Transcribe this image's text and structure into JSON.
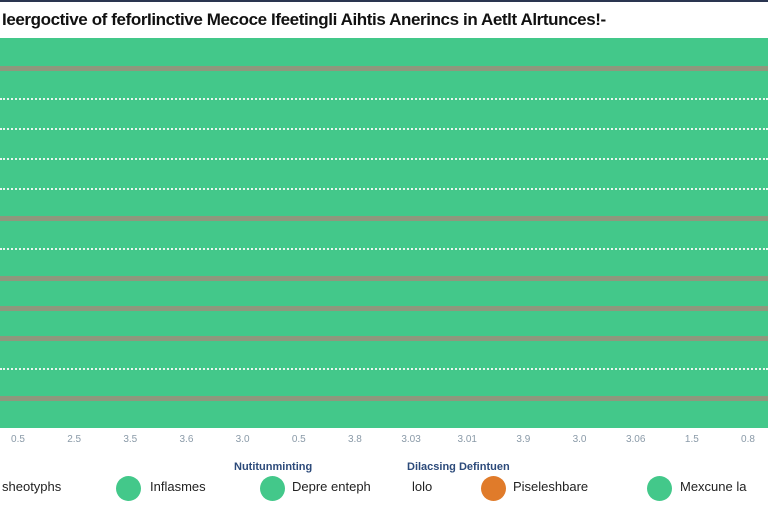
{
  "chart_data": {
    "type": "area",
    "title": "Ieergoctive of feforIinctive Mecoce Ifeetingli Aihtis Anerincs in Aetlt Alrtunces!-",
    "series_color": "#43c88a",
    "gridlines": {
      "solid": [
        1,
        6,
        8,
        9,
        10,
        12
      ],
      "dotted": [
        2,
        3,
        4,
        5,
        7,
        11
      ],
      "solid_color": "#9c8f7a",
      "dotted_color": "#e8f5ee"
    },
    "x_tick_labels": [
      "0.5",
      "2.5",
      "3.5",
      "3.6",
      "3.0",
      "0.5",
      "3.8",
      "3.03",
      "3.01",
      "3.9",
      "3.0",
      "3.06",
      "1.5",
      "0.8"
    ],
    "legend": {
      "groups": [
        "Nutitunminting",
        "Dilacsing Defintuen"
      ],
      "items": [
        {
          "label": "sheotyphs",
          "color": null
        },
        {
          "label": "Inflasmes",
          "color": "#43c88a"
        },
        {
          "label": "Depre enteph",
          "color": "#43c88a"
        },
        {
          "label": "lolo",
          "color": null
        },
        {
          "label": "Piseleshbare",
          "color": "#e07b2a"
        },
        {
          "label": "Mexcune la",
          "color": "#43c88a"
        }
      ]
    }
  }
}
